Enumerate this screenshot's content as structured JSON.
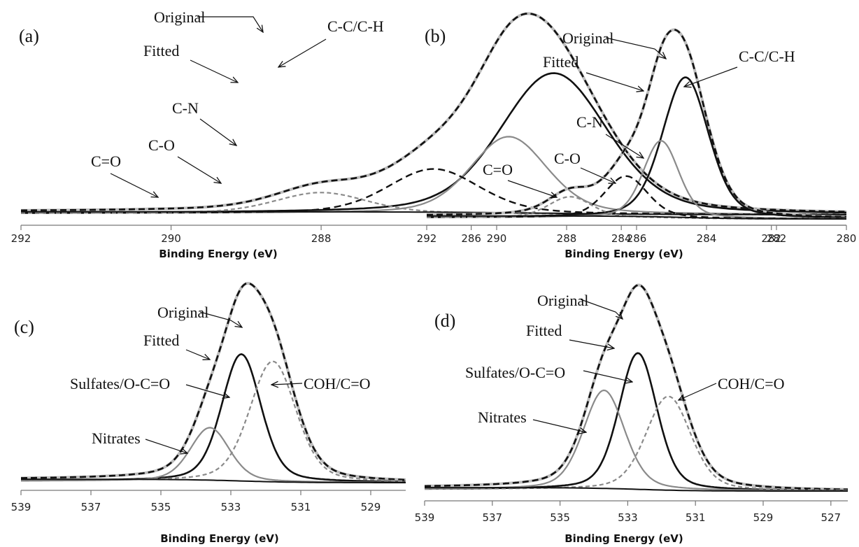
{
  "chart_data": [
    {
      "type": "line",
      "panel_label": "(a)",
      "xlabel": "Binding Energy (eV)",
      "xlim": [
        292,
        281
      ],
      "xticks": [
        292,
        290,
        288,
        286,
        284,
        282
      ],
      "series": [
        {
          "name": "Original",
          "style": "original",
          "peaks": [
            {
              "center": 284.9,
              "height": 0.95,
              "sigma": 0.7
            },
            {
              "center": 285.5,
              "height": 0.52,
              "sigma": 0.5
            },
            {
              "center": 286.5,
              "height": 0.3,
              "sigma": 0.6
            },
            {
              "center": 288.0,
              "height": 0.14,
              "sigma": 0.6
            }
          ]
        },
        {
          "name": "Fitted",
          "style": "fitted",
          "peaks": [
            {
              "center": 284.9,
              "height": 0.95,
              "sigma": 0.7
            },
            {
              "center": 285.5,
              "height": 0.52,
              "sigma": 0.5
            },
            {
              "center": 286.5,
              "height": 0.3,
              "sigma": 0.6
            },
            {
              "center": 288.0,
              "height": 0.14,
              "sigma": 0.6
            }
          ]
        },
        {
          "name": "C-C/C-H",
          "style": "main",
          "peaks": [
            {
              "center": 284.9,
              "height": 0.95,
              "sigma": 0.7
            }
          ]
        },
        {
          "name": "C-N",
          "style": "gray",
          "peaks": [
            {
              "center": 285.5,
              "height": 0.52,
              "sigma": 0.5
            }
          ]
        },
        {
          "name": "C-O",
          "style": "dashed",
          "peaks": [
            {
              "center": 286.5,
              "height": 0.3,
              "sigma": 0.6
            }
          ]
        },
        {
          "name": "C=O",
          "style": "graydash",
          "peaks": [
            {
              "center": 288.0,
              "height": 0.14,
              "sigma": 0.6
            }
          ]
        }
      ]
    },
    {
      "type": "line",
      "panel_label": "(b)",
      "xlabel": "Binding Energy (eV)",
      "xlim": [
        292,
        280
      ],
      "xticks": [
        292,
        290,
        288,
        286,
        284,
        282,
        280
      ],
      "series": [
        {
          "name": "Original",
          "style": "original",
          "peaks": [
            {
              "center": 284.6,
              "height": 0.95,
              "sigma": 0.65
            },
            {
              "center": 285.3,
              "height": 0.52,
              "sigma": 0.5
            },
            {
              "center": 286.3,
              "height": 0.28,
              "sigma": 0.6
            },
            {
              "center": 287.9,
              "height": 0.14,
              "sigma": 0.6
            }
          ]
        },
        {
          "name": "Fitted",
          "style": "fitted",
          "peaks": [
            {
              "center": 284.6,
              "height": 0.95,
              "sigma": 0.65
            },
            {
              "center": 285.3,
              "height": 0.52,
              "sigma": 0.5
            },
            {
              "center": 286.3,
              "height": 0.28,
              "sigma": 0.6
            },
            {
              "center": 287.9,
              "height": 0.14,
              "sigma": 0.6
            }
          ]
        },
        {
          "name": "C-C/C-H",
          "style": "main",
          "peaks": [
            {
              "center": 284.6,
              "height": 0.95,
              "sigma": 0.65
            }
          ]
        },
        {
          "name": "C-N",
          "style": "gray",
          "peaks": [
            {
              "center": 285.3,
              "height": 0.52,
              "sigma": 0.5
            }
          ]
        },
        {
          "name": "C-O",
          "style": "dashed",
          "peaks": [
            {
              "center": 286.3,
              "height": 0.28,
              "sigma": 0.6
            }
          ]
        },
        {
          "name": "C=O",
          "style": "graydash",
          "peaks": [
            {
              "center": 287.9,
              "height": 0.14,
              "sigma": 0.6
            }
          ]
        }
      ]
    },
    {
      "type": "line",
      "panel_label": "(c)",
      "xlabel": "Binding Energy (eV)",
      "xlim": [
        539,
        528
      ],
      "xticks": [
        539,
        537,
        535,
        533,
        531,
        529
      ],
      "series": [
        {
          "name": "Original",
          "style": "original",
          "peaks": [
            {
              "center": 532.7,
              "height": 0.76,
              "sigma": 0.55
            },
            {
              "center": 531.8,
              "height": 0.72,
              "sigma": 0.65
            },
            {
              "center": 533.6,
              "height": 0.32,
              "sigma": 0.55
            }
          ]
        },
        {
          "name": "Fitted",
          "style": "fitted",
          "peaks": [
            {
              "center": 532.7,
              "height": 0.76,
              "sigma": 0.55
            },
            {
              "center": 531.8,
              "height": 0.72,
              "sigma": 0.65
            },
            {
              "center": 533.6,
              "height": 0.32,
              "sigma": 0.55
            }
          ]
        },
        {
          "name": "Sulfates/O-C=O",
          "style": "main",
          "peaks": [
            {
              "center": 532.7,
              "height": 0.76,
              "sigma": 0.55
            }
          ]
        },
        {
          "name": "COH/C=O",
          "style": "graydash",
          "peaks": [
            {
              "center": 531.8,
              "height": 0.72,
              "sigma": 0.65
            }
          ]
        },
        {
          "name": "Nitrates",
          "style": "gray",
          "peaks": [
            {
              "center": 533.6,
              "height": 0.32,
              "sigma": 0.55
            }
          ]
        }
      ]
    },
    {
      "type": "line",
      "panel_label": "(d)",
      "xlabel": "Binding Energy (eV)",
      "xlim": [
        539,
        526.5
      ],
      "xticks": [
        539,
        537,
        535,
        533,
        531,
        529,
        527
      ],
      "series": [
        {
          "name": "Original",
          "style": "original",
          "peaks": [
            {
              "center": 532.7,
              "height": 0.8,
              "sigma": 0.55
            },
            {
              "center": 531.8,
              "height": 0.55,
              "sigma": 0.65
            },
            {
              "center": 533.7,
              "height": 0.58,
              "sigma": 0.6
            }
          ]
        },
        {
          "name": "Fitted",
          "style": "fitted",
          "peaks": [
            {
              "center": 532.7,
              "height": 0.8,
              "sigma": 0.55
            },
            {
              "center": 531.8,
              "height": 0.55,
              "sigma": 0.65
            },
            {
              "center": 533.7,
              "height": 0.58,
              "sigma": 0.6
            }
          ]
        },
        {
          "name": "Sulfates/O-C=O",
          "style": "main",
          "peaks": [
            {
              "center": 532.7,
              "height": 0.8,
              "sigma": 0.55
            }
          ]
        },
        {
          "name": "COH/C=O",
          "style": "graydash",
          "peaks": [
            {
              "center": 531.8,
              "height": 0.55,
              "sigma": 0.65
            }
          ]
        },
        {
          "name": "Nitrates",
          "style": "gray",
          "peaks": [
            {
              "center": 533.7,
              "height": 0.58,
              "sigma": 0.6
            }
          ]
        }
      ]
    }
  ]
}
